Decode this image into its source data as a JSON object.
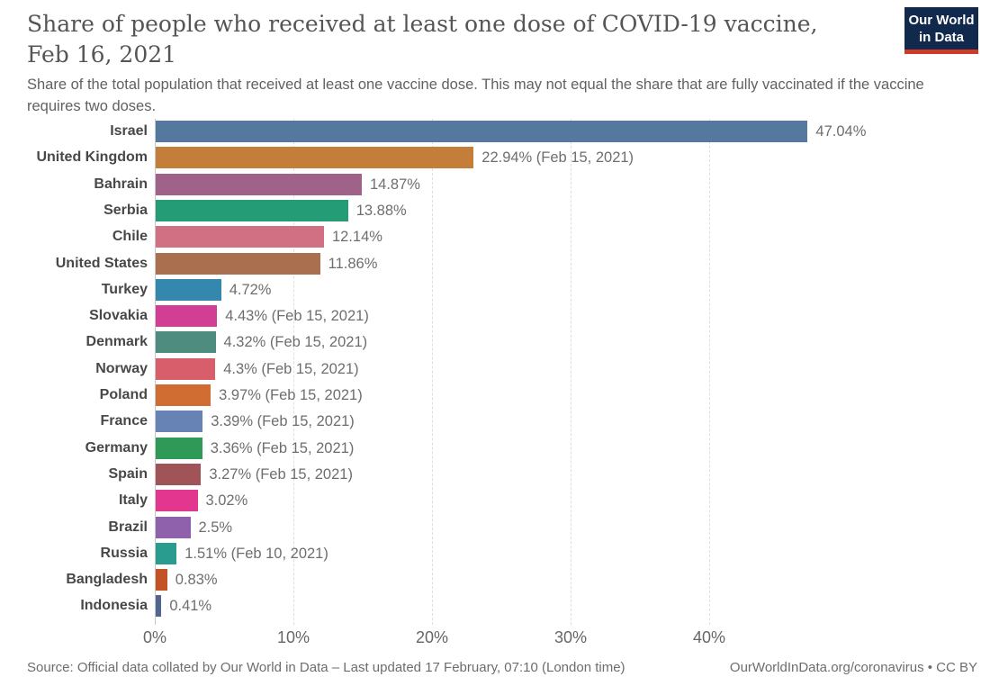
{
  "header": {
    "logo": {
      "line1": "Our World",
      "line2": "in Data",
      "bg_color": "#12294E",
      "accent_color": "#CE3C28"
    }
  },
  "chart_data": {
    "type": "bar",
    "orientation": "horizontal",
    "title": "Share of people who received at least one dose of COVID-19 vaccine, Feb 16, 2021",
    "subtitle": "Share of the total population that received at least one vaccine dose. This may not equal the share that are fully vaccinated if the vaccine requires two doses.",
    "unit": "%",
    "xlim": [
      0,
      47.5
    ],
    "grid": "dashed-vertical",
    "gridline_values": [
      10,
      20,
      30,
      40
    ],
    "x_ticks": [
      {
        "value": 0,
        "label": "0%"
      },
      {
        "value": 10,
        "label": "10%"
      },
      {
        "value": 20,
        "label": "20%"
      },
      {
        "value": 30,
        "label": "30%"
      },
      {
        "value": 40,
        "label": "40%"
      }
    ],
    "categories": [
      "Israel",
      "United Kingdom",
      "Bahrain",
      "Serbia",
      "Chile",
      "United States",
      "Turkey",
      "Slovakia",
      "Denmark",
      "Norway",
      "Poland",
      "France",
      "Germany",
      "Spain",
      "Italy",
      "Brazil",
      "Russia",
      "Bangladesh",
      "Indonesia"
    ],
    "values": [
      47.04,
      22.94,
      14.87,
      13.88,
      12.14,
      11.86,
      4.72,
      4.43,
      4.32,
      4.3,
      3.97,
      3.39,
      3.36,
      3.27,
      3.02,
      2.5,
      1.51,
      0.83,
      0.41
    ],
    "bars": [
      {
        "country": "Israel",
        "value": 47.04,
        "label": "47.04%",
        "color": "#55799E"
      },
      {
        "country": "United Kingdom",
        "value": 22.94,
        "label": "22.94% (Feb 15, 2021)",
        "color": "#C47E3A"
      },
      {
        "country": "Bahrain",
        "value": 14.87,
        "label": "14.87%",
        "color": "#A06288"
      },
      {
        "country": "Serbia",
        "value": 13.88,
        "label": "13.88%",
        "color": "#249C76"
      },
      {
        "country": "Chile",
        "value": 12.14,
        "label": "12.14%",
        "color": "#D17083"
      },
      {
        "country": "United States",
        "value": 11.86,
        "label": "11.86%",
        "color": "#AA6F4E"
      },
      {
        "country": "Turkey",
        "value": 4.72,
        "label": "4.72%",
        "color": "#3487AD"
      },
      {
        "country": "Slovakia",
        "value": 4.43,
        "label": "4.43% (Feb 15, 2021)",
        "color": "#D23E93"
      },
      {
        "country": "Denmark",
        "value": 4.32,
        "label": "4.32% (Feb 15, 2021)",
        "color": "#4F8C80"
      },
      {
        "country": "Norway",
        "value": 4.3,
        "label": "4.3% (Feb 15, 2021)",
        "color": "#D95E6C"
      },
      {
        "country": "Poland",
        "value": 3.97,
        "label": "3.97% (Feb 15, 2021)",
        "color": "#CF6D33"
      },
      {
        "country": "France",
        "value": 3.39,
        "label": "3.39% (Feb 15, 2021)",
        "color": "#6782B4"
      },
      {
        "country": "Germany",
        "value": 3.36,
        "label": "3.36% (Feb 15, 2021)",
        "color": "#2F9A58"
      },
      {
        "country": "Spain",
        "value": 3.27,
        "label": "3.27% (Feb 15, 2021)",
        "color": "#A05458"
      },
      {
        "country": "Italy",
        "value": 3.02,
        "label": "3.02%",
        "color": "#E2368F"
      },
      {
        "country": "Brazil",
        "value": 2.5,
        "label": "2.5%",
        "color": "#8F61AD"
      },
      {
        "country": "Russia",
        "value": 1.51,
        "label": "1.51% (Feb 10, 2021)",
        "color": "#2A9C8F"
      },
      {
        "country": "Bangladesh",
        "value": 0.83,
        "label": "0.83%",
        "color": "#C35227"
      },
      {
        "country": "Indonesia",
        "value": 0.41,
        "label": "0.41%",
        "color": "#52658C"
      }
    ]
  },
  "footer": {
    "source": "Source: Official data collated by Our World in Data – Last updated 17 February, 07:10 (London time)",
    "license": "OurWorldInData.org/coronavirus • CC BY"
  }
}
